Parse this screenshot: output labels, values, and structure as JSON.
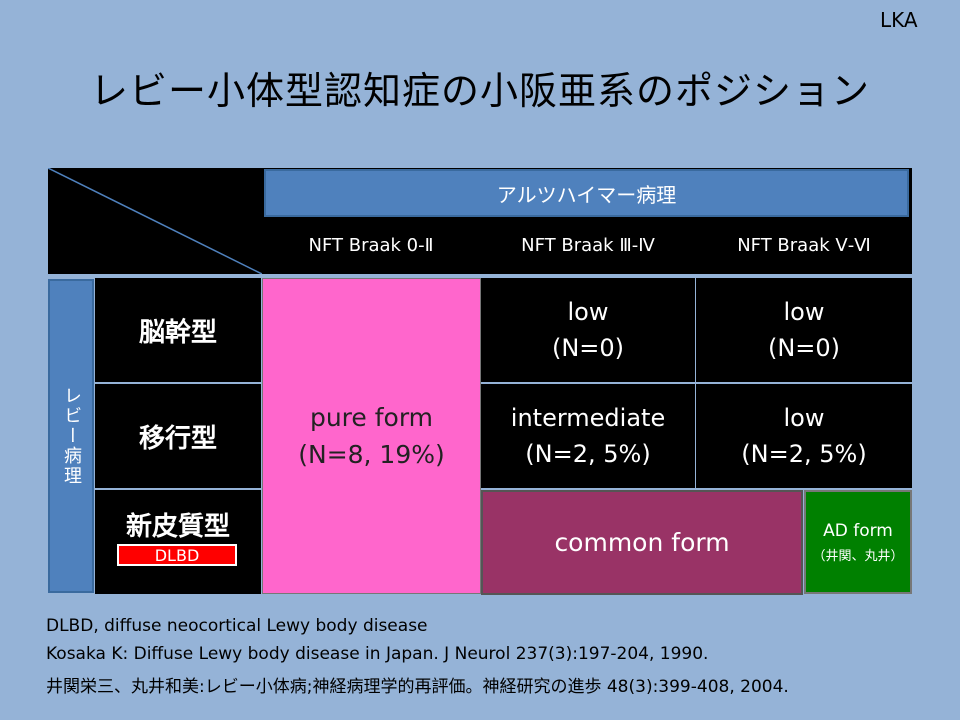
{
  "corner_label": "LKA",
  "title": "レビー小体型認知症の小阪亜系のポジション",
  "table": {
    "alzheimer_header": "アルツハイマー病理",
    "braak_columns": [
      "NFT Braak 0-Ⅱ",
      "NFT Braak Ⅲ-Ⅳ",
      "NFT Braak Ⅴ-Ⅵ"
    ],
    "lewy_header": "レビー病理",
    "rows": [
      "脳幹型",
      "移行型",
      "新皮質型"
    ],
    "dlbd_badge": "DLBD",
    "pure_form": {
      "line1": "pure form",
      "line2": "(N=8, 19%)"
    },
    "cells": {
      "brainstem_mid": {
        "line1": "low",
        "line2": "(N=0)"
      },
      "brainstem_high": {
        "line1": "low",
        "line2": "(N=0)"
      },
      "transitional_mid": {
        "line1": "intermediate",
        "line2": "(N=2, 5%)"
      },
      "transitional_high": {
        "line1": "low",
        "line2": "(N=2, 5%)"
      }
    },
    "common_form": "common form",
    "ad_form": {
      "line1": "AD form",
      "line2": "（井関、丸井）"
    }
  },
  "references": [
    "DLBD, diffuse neocortical Lewy body disease",
    "Kosaka K: Diffuse Lewy body disease in Japan. J Neurol 237(3):197-204, 1990.",
    "井関栄三、丸井和美:レビー小体病;神経病理学的再評価。神経研究の進歩 48(3):399-408, 2004."
  ],
  "colors": {
    "background": "#95B3D7",
    "header_blue": "#4F81BD",
    "pure_form": "#FF66CC",
    "common_form": "#993366",
    "ad_form": "#008000",
    "dlbd_badge": "#FF0000"
  }
}
